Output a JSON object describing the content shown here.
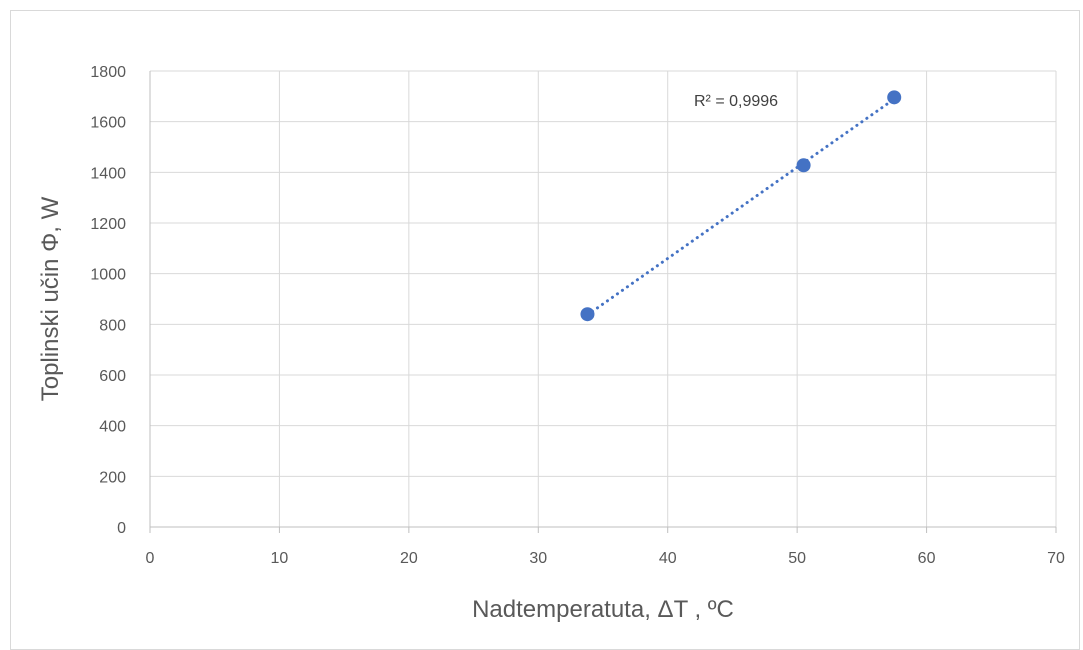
{
  "chart_data": {
    "type": "scatter",
    "title": "",
    "xlabel": "Nadtemperatuta, ΔT , ºC",
    "ylabel": "Toplinski učin Φ, W",
    "xlim": [
      0,
      70
    ],
    "ylim": [
      0,
      1800
    ],
    "x_ticks": [
      0,
      10,
      20,
      30,
      40,
      50,
      60,
      70
    ],
    "y_ticks": [
      0,
      200,
      400,
      600,
      800,
      1000,
      1200,
      1400,
      1600,
      1800
    ],
    "grid": true,
    "series": [
      {
        "x": [
          33.8,
          50.5,
          57.5
        ],
        "y": [
          840,
          1428,
          1696
        ],
        "color": "#4472c4"
      }
    ],
    "trendline": {
      "type": "linear",
      "style": "dotted",
      "color": "#4472c4",
      "x_range": [
        33.8,
        57.5
      ]
    },
    "annotations": [
      {
        "text": "R² = 0,9996"
      }
    ]
  }
}
